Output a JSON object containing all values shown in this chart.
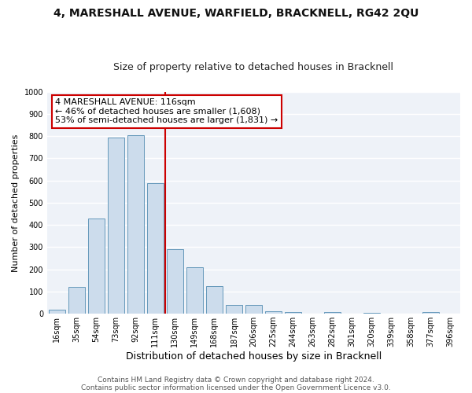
{
  "title": "4, MARESHALL AVENUE, WARFIELD, BRACKNELL, RG42 2QU",
  "subtitle": "Size of property relative to detached houses in Bracknell",
  "xlabel": "Distribution of detached houses by size in Bracknell",
  "ylabel": "Number of detached properties",
  "bar_labels": [
    "16sqm",
    "35sqm",
    "54sqm",
    "73sqm",
    "92sqm",
    "111sqm",
    "130sqm",
    "149sqm",
    "168sqm",
    "187sqm",
    "206sqm",
    "225sqm",
    "244sqm",
    "263sqm",
    "282sqm",
    "301sqm",
    "320sqm",
    "339sqm",
    "358sqm",
    "377sqm",
    "396sqm"
  ],
  "bar_values": [
    18,
    120,
    430,
    795,
    805,
    590,
    290,
    210,
    125,
    40,
    40,
    12,
    8,
    0,
    8,
    0,
    5,
    0,
    0,
    7,
    0
  ],
  "bar_color": "#ccdcec",
  "bar_edge_color": "#6699bb",
  "bar_width": 0.85,
  "vline_color": "#cc0000",
  "annotation_title": "4 MARESHALL AVENUE: 116sqm",
  "annotation_line1": "← 46% of detached houses are smaller (1,608)",
  "annotation_line2": "53% of semi-detached houses are larger (1,831) →",
  "annotation_box_color": "#ffffff",
  "annotation_box_edge": "#cc0000",
  "ylim": [
    0,
    1000
  ],
  "yticks": [
    0,
    100,
    200,
    300,
    400,
    500,
    600,
    700,
    800,
    900,
    1000
  ],
  "footer1": "Contains HM Land Registry data © Crown copyright and database right 2024.",
  "footer2": "Contains public sector information licensed under the Open Government Licence v3.0.",
  "bg_color": "#ffffff",
  "plot_bg_color": "#eef2f8",
  "grid_color": "#ffffff",
  "title_fontsize": 10,
  "subtitle_fontsize": 9,
  "ylabel_fontsize": 8,
  "xlabel_fontsize": 9,
  "tick_fontsize": 7,
  "footer_fontsize": 6.5,
  "annotation_fontsize": 8
}
